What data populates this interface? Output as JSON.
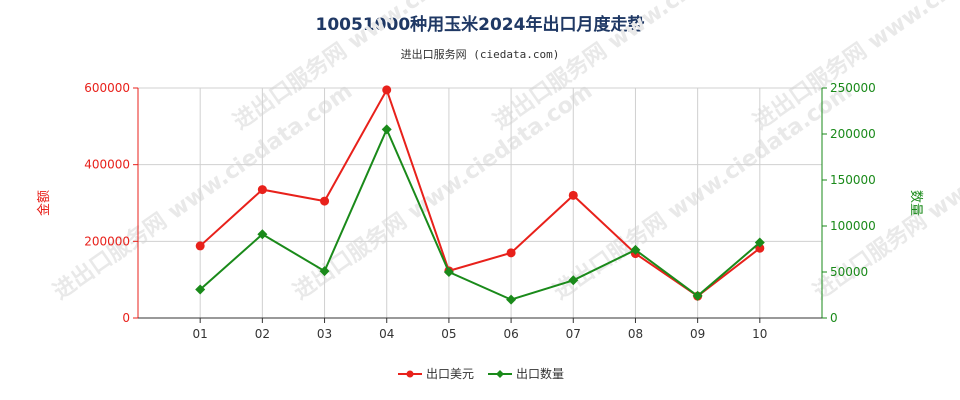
{
  "chart_title": "10051000种用玉米2024年出口月度走势",
  "chart_subtitle": "进出口服务网 (ciedata.com)",
  "watermark": "进出口服务网 www.ciedata.com",
  "chart_data": {
    "type": "line",
    "title": "10051000种用玉米2024年出口月度走势",
    "subtitle": "进出口服务网 (ciedata.com)",
    "categories": [
      "01",
      "02",
      "03",
      "04",
      "05",
      "06",
      "07",
      "08",
      "09",
      "10"
    ],
    "y_left": {
      "label": "金额",
      "ticks": [
        "0",
        "200000",
        "400000",
        "600000"
      ],
      "ylim": [
        0,
        600000
      ],
      "color": "#e8211b"
    },
    "y_right": {
      "label": "数量",
      "ticks": [
        "0",
        "50000",
        "100000",
        "150000",
        "200000",
        "250000"
      ],
      "ylim": [
        0,
        250000
      ],
      "color": "#1a8a1a"
    },
    "series": [
      {
        "name": "出口美元",
        "axis": "left",
        "color": "#e8211b",
        "marker": "circle",
        "values": [
          188000,
          335000,
          305000,
          595000,
          123000,
          170000,
          320000,
          168000,
          57000,
          182000
        ]
      },
      {
        "name": "出口数量",
        "axis": "right",
        "color": "#1a8a1a",
        "marker": "diamond",
        "values": [
          31000,
          91000,
          51000,
          205000,
          50000,
          20000,
          41000,
          74000,
          24000,
          82000
        ]
      }
    ],
    "grid": true,
    "legend_position": "bottom-center"
  }
}
